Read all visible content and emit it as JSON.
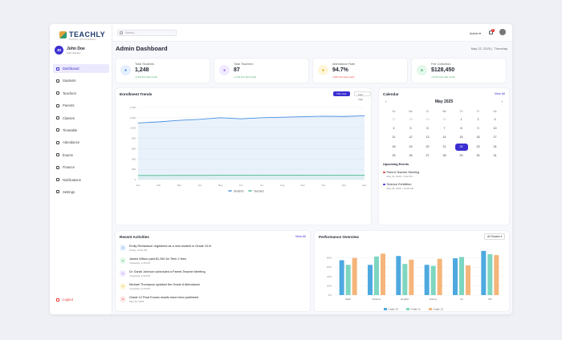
{
  "brand": {
    "name": "TEACHLY",
    "tagline": "SCHOOL MANAGEMENT"
  },
  "user": {
    "initials": "JD",
    "name": "John Doe",
    "role": "Administrator"
  },
  "nav": [
    {
      "label": "Dashboard",
      "icon": "grid-icon",
      "active": true
    },
    {
      "label": "Students",
      "icon": "user-icon"
    },
    {
      "label": "Teachers",
      "icon": "teacher-icon"
    },
    {
      "label": "Parents",
      "icon": "users-icon"
    },
    {
      "label": "Classes",
      "icon": "book-icon"
    },
    {
      "label": "Timetable",
      "icon": "calendar-icon"
    },
    {
      "label": "Attendance",
      "icon": "check-icon"
    },
    {
      "label": "Exams",
      "icon": "file-icon"
    },
    {
      "label": "Finance",
      "icon": "dollar-icon"
    },
    {
      "label": "Notifications",
      "icon": "bell-icon"
    },
    {
      "label": "Settings",
      "icon": "gear-icon"
    }
  ],
  "logout": "Logout",
  "topbar": {
    "search_placeholder": "Search...",
    "user_label": "Admin",
    "notifications": "3"
  },
  "page": {
    "title": "Admin Dashboard",
    "date": "May 22, 2025",
    "weekday": "Thursday"
  },
  "stats": [
    {
      "label": "Total Students",
      "value": "1,248",
      "delta": "+2.5% from last month",
      "icon": "students-icon",
      "color": "#3b82f6",
      "bg": "#e6efff",
      "negative": false
    },
    {
      "label": "Total Teachers",
      "value": "87",
      "delta": "+1.4% from last month",
      "icon": "teachers-icon",
      "color": "#8b5cf6",
      "bg": "#f1e9ff",
      "negative": false
    },
    {
      "label": "Attendance Rate",
      "value": "94.7%",
      "delta": "-0.8% from last month",
      "icon": "attendance-icon",
      "color": "#d9a300",
      "bg": "#fff6d9",
      "negative": true
    },
    {
      "label": "Fee Collection",
      "value": "$128,450",
      "delta": "+12.3% from last month",
      "icon": "dollar-icon",
      "color": "#2fb561",
      "bg": "#e3f7ea",
      "negative": false
    }
  ],
  "enrollment": {
    "title": "Enrollment Trends",
    "toggle_active": "This Year",
    "toggle_inactive": "Last Year"
  },
  "chart_data": [
    {
      "type": "area",
      "title": "Enrollment Trends",
      "categories": [
        "Jan",
        "Feb",
        "Mar",
        "Apr",
        "May",
        "Jun",
        "Jul",
        "Aug",
        "Sep",
        "Oct",
        "Nov",
        "Dec"
      ],
      "yticks": [
        0,
        200,
        400,
        600,
        800,
        1000,
        1200,
        1400
      ],
      "ylim": [
        0,
        1400
      ],
      "legend": "bottom",
      "series": [
        {
          "name": "Students",
          "values": [
            1100,
            1120,
            1150,
            1170,
            1200,
            1180,
            1200,
            1210,
            1220,
            1230,
            1225,
            1240
          ],
          "color": "#4a90e2"
        },
        {
          "name": "Teachers",
          "values": [
            80,
            80,
            82,
            82,
            84,
            84,
            85,
            85,
            86,
            86,
            86,
            87
          ],
          "color": "#4cb98b"
        }
      ]
    },
    {
      "type": "bar",
      "title": "Performance Overview",
      "categories": [
        "Math",
        "Science",
        "English",
        "History",
        "Art",
        "PE"
      ],
      "yticks": [
        "0%",
        "20%",
        "40%",
        "60%",
        "80%"
      ],
      "ylim": [
        0,
        100
      ],
      "legend": "bottom",
      "series": [
        {
          "name": "Grade 10",
          "values": [
            75,
            65,
            84,
            65,
            79,
            95
          ],
          "color": "#4ea9e0"
        },
        {
          "name": "Grade 11",
          "values": [
            65,
            83,
            67,
            63,
            82,
            88
          ],
          "color": "#7ed6c0"
        },
        {
          "name": "Grade 12",
          "values": [
            80,
            89,
            76,
            78,
            64,
            86
          ],
          "color": "#f5b57a"
        }
      ]
    }
  ],
  "calendar": {
    "title": "Calendar",
    "view_all": "View All",
    "month": "May 2025",
    "weekdays": [
      "Su",
      "Mo",
      "Tu",
      "We",
      "Th",
      "Fr",
      "Sa"
    ],
    "days": [
      {
        "d": "27",
        "muted": true
      },
      {
        "d": "28",
        "muted": true
      },
      {
        "d": "29",
        "muted": true
      },
      {
        "d": "30",
        "muted": true
      },
      {
        "d": "1"
      },
      {
        "d": "2"
      },
      {
        "d": "3"
      },
      {
        "d": "4"
      },
      {
        "d": "5"
      },
      {
        "d": "6"
      },
      {
        "d": "7"
      },
      {
        "d": "8"
      },
      {
        "d": "9"
      },
      {
        "d": "10"
      },
      {
        "d": "11"
      },
      {
        "d": "12"
      },
      {
        "d": "13"
      },
      {
        "d": "14"
      },
      {
        "d": "15"
      },
      {
        "d": "16"
      },
      {
        "d": "17"
      },
      {
        "d": "18"
      },
      {
        "d": "19"
      },
      {
        "d": "20"
      },
      {
        "d": "21"
      },
      {
        "d": "22",
        "selected": true
      },
      {
        "d": "23"
      },
      {
        "d": "24"
      },
      {
        "d": "25"
      },
      {
        "d": "26"
      },
      {
        "d": "27"
      },
      {
        "d": "28"
      },
      {
        "d": "29"
      },
      {
        "d": "30"
      },
      {
        "d": "31"
      }
    ],
    "upcoming_title": "Upcoming Events",
    "events": [
      {
        "title": "Parent-Teacher Meeting",
        "when": "May 23, 2025 • 3:00 PM",
        "color": "#e53935"
      },
      {
        "title": "Science Exhibition",
        "when": "May 26, 2025 • 10:00 AM",
        "color": "#3b2fd0"
      }
    ]
  },
  "activities": {
    "title": "Recent Activities",
    "view_all": "View All",
    "items": [
      {
        "text": "Emily Richardson registered as a new student in Grade 10-B",
        "time": "Today, 10:32 AM",
        "icon": "user-add-icon",
        "color": "#3b82f6",
        "bg": "#e6efff"
      },
      {
        "text": "James Wilson paid $1,250 for Term 2 fees",
        "time": "Yesterday, 4:45 PM",
        "icon": "dollar-icon",
        "color": "#2fb561",
        "bg": "#e3f7ea"
      },
      {
        "text": "Dr. Sarah Johnson scheduled a Parent-Teacher Meeting",
        "time": "Yesterday, 2:30 PM",
        "icon": "calendar-icon",
        "color": "#8b5cf6",
        "bg": "#f1e9ff"
      },
      {
        "text": "Michael Thompson updated the Grade 8 Attendance",
        "time": "Yesterday, 3:15 PM",
        "icon": "check-icon",
        "color": "#d9a300",
        "bg": "#fff6d9"
      },
      {
        "text": "Grade 12 Final Exams results have been published",
        "time": "May 20, 2025",
        "icon": "file-icon",
        "color": "#e53935",
        "bg": "#fde8e8"
      }
    ]
  },
  "performance": {
    "title": "Performance Overview",
    "filter": "All Grades"
  }
}
